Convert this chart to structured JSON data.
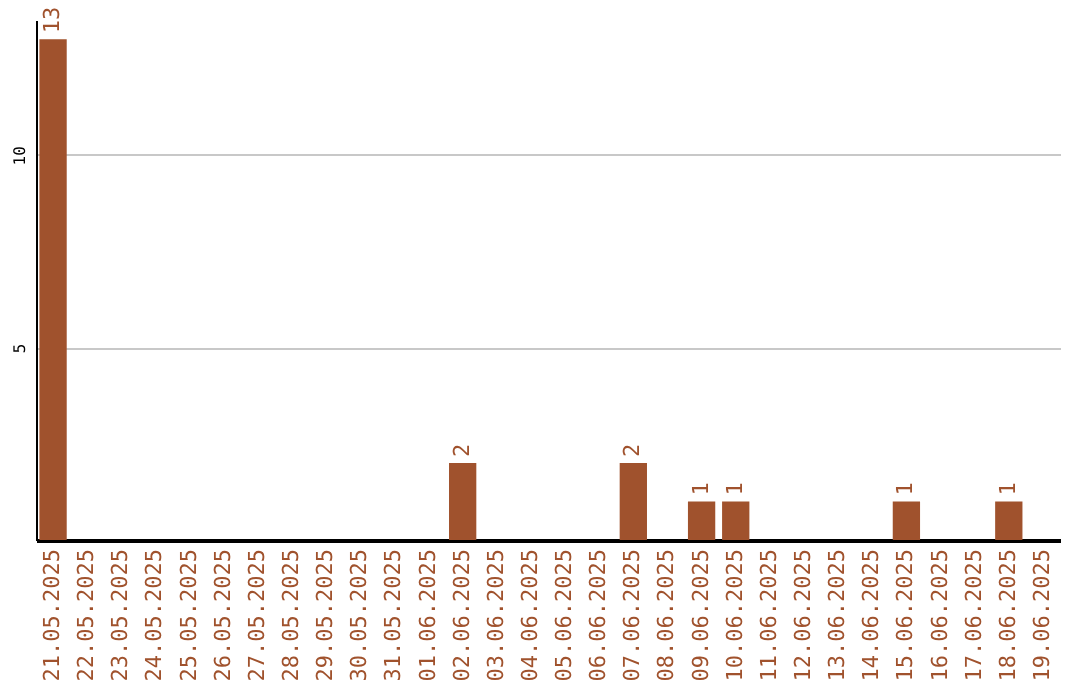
{
  "chart_data": {
    "type": "bar",
    "categories": [
      "21.05.2025",
      "22.05.2025",
      "23.05.2025",
      "24.05.2025",
      "25.05.2025",
      "26.05.2025",
      "27.05.2025",
      "28.05.2025",
      "29.05.2025",
      "30.05.2025",
      "31.05.2025",
      "01.06.2025",
      "02.06.2025",
      "03.06.2025",
      "04.06.2025",
      "05.06.2025",
      "06.06.2025",
      "07.06.2025",
      "08.06.2025",
      "09.06.2025",
      "10.06.2025",
      "11.06.2025",
      "12.06.2025",
      "13.06.2025",
      "14.06.2025",
      "15.06.2025",
      "16.06.2025",
      "17.06.2025",
      "18.06.2025",
      "19.06.2025"
    ],
    "values": [
      13,
      0,
      0,
      0,
      0,
      0,
      0,
      0,
      0,
      0,
      0,
      0,
      2,
      0,
      0,
      0,
      0,
      2,
      0,
      1,
      1,
      0,
      0,
      0,
      0,
      1,
      0,
      0,
      1,
      0
    ],
    "value_labels": [
      "13",
      null,
      null,
      null,
      null,
      null,
      null,
      null,
      null,
      null,
      null,
      null,
      "2",
      null,
      null,
      null,
      null,
      "2",
      null,
      "1",
      "1",
      null,
      null,
      null,
      null,
      "1",
      null,
      null,
      "1",
      null
    ],
    "color": "#a0522d",
    "ylim": [
      0,
      13.5
    ],
    "yticks": [
      5,
      10
    ],
    "grid": "y"
  }
}
